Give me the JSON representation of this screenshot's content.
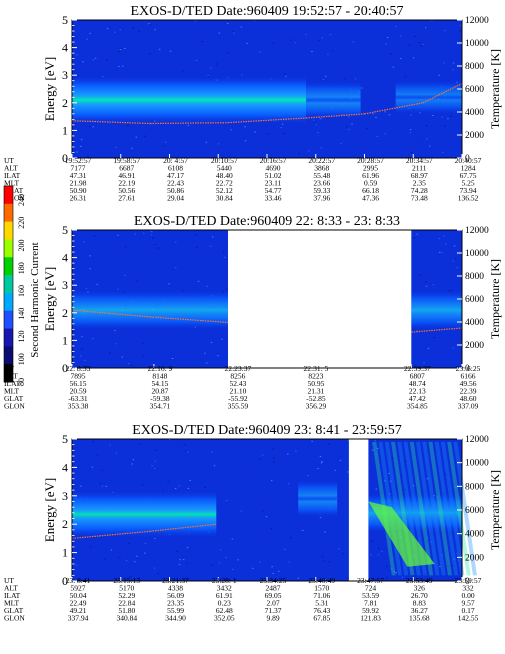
{
  "colors": {
    "background": "#0b2fd8",
    "band_core": "#00e8b0",
    "band_halo": "#18a0ff",
    "band_edge": "#0a5cff",
    "temp_trace": "#ff7030",
    "axis": "#000000"
  },
  "colorbar": {
    "label": "Second Harmonic Current",
    "ticks": [
      "240",
      "220",
      "200",
      "180",
      "160",
      "140",
      "120",
      "100",
      "80"
    ],
    "colors": [
      "#ff0000",
      "#ff6a00",
      "#ffd800",
      "#9cff00",
      "#00d000",
      "#00c8a0",
      "#00a8ff",
      "#1e50ff",
      "#1818b0",
      "#0c0c70",
      "#000000"
    ]
  },
  "chart_data": [
    {
      "type": "heatmap",
      "title": "EXOS-D/TED   Date:960409  19:52:57 - 20:40:57",
      "ylabel": "Energy [eV]",
      "y2label": "Temperature [K]",
      "ylim": [
        0,
        5
      ],
      "y2lim": [
        0,
        12000
      ],
      "yticks": [
        "0",
        "1",
        "2",
        "3",
        "4",
        "5"
      ],
      "y2ticks": [
        "0",
        "2000",
        "4000",
        "6000",
        "8000",
        "10000",
        "12000"
      ],
      "data_gaps": [],
      "band_segments": [
        {
          "x_start": 0.0,
          "x_end": 0.6,
          "center_ev": 2.1,
          "intensity": 1.0
        },
        {
          "x_start": 0.6,
          "x_end": 0.74,
          "center_ev": 2.1,
          "intensity": 0.45
        },
        {
          "x_start": 0.83,
          "x_end": 1.0,
          "center_ev": 2.2,
          "intensity": 0.25
        }
      ],
      "temp_trace_ev": [
        [
          0.0,
          1.35
        ],
        [
          0.2,
          1.25
        ],
        [
          0.4,
          1.28
        ],
        [
          0.6,
          1.45
        ],
        [
          0.75,
          1.6
        ],
        [
          0.9,
          2.0
        ],
        [
          1.0,
          2.7
        ]
      ],
      "table": {
        "labels": [
          "UT",
          "ALT",
          "ILAT",
          "MLT",
          "GLAT",
          "GLON"
        ],
        "columns": [
          [
            "19:52:57",
            "7177",
            "47.31",
            "21.98",
            "50.90",
            "26.31"
          ],
          [
            "19:58:57",
            "6687",
            "46.91",
            "22.19",
            "50.56",
            "27.61"
          ],
          [
            "20: 4:57",
            "6108",
            "47.17",
            "22.43",
            "50.86",
            "29.04"
          ],
          [
            "20:10:57",
            "5440",
            "48.40",
            "22.72",
            "52.12",
            "30.84"
          ],
          [
            "20:16:57",
            "4690",
            "51.02",
            "23.11",
            "54.77",
            "33.46"
          ],
          [
            "20:22:57",
            "3868",
            "55.48",
            "23.66",
            "59.33",
            "37.96"
          ],
          [
            "20:28:57",
            "2995",
            "61.96",
            "0.59",
            "66.18",
            "47.36"
          ],
          [
            "20:34:57",
            "2111",
            "68.97",
            "2.35",
            "74.28",
            "73.48"
          ],
          [
            "20:40:57",
            "1284",
            "67.75",
            "5.25",
            "73.94",
            "136.52"
          ]
        ]
      }
    },
    {
      "type": "heatmap",
      "title": "EXOS-D/TED   Date:960409  22: 8:33 - 23: 8:33",
      "ylabel": "Energy [eV]",
      "y2label": "Temperature [K]",
      "ylim": [
        0,
        5
      ],
      "y2lim": [
        0,
        12000
      ],
      "yticks": [
        "0",
        "1",
        "2",
        "3",
        "4",
        "5"
      ],
      "y2ticks": [
        "0",
        "2000",
        "4000",
        "6000",
        "8000",
        "10000",
        "12000"
      ],
      "data_gaps": [
        [
          0.4,
          0.87
        ]
      ],
      "band_segments": [
        {
          "x_start": 0.0,
          "x_end": 0.4,
          "center_ev": 2.1,
          "intensity": 0.55
        },
        {
          "x_start": 0.87,
          "x_end": 1.0,
          "center_ev": 2.1,
          "intensity": 0.55
        }
      ],
      "temp_trace_ev": [
        [
          0.0,
          2.1
        ],
        [
          0.2,
          1.85
        ],
        [
          0.4,
          1.65
        ],
        [
          0.87,
          1.3
        ],
        [
          1.0,
          1.45
        ]
      ],
      "table": {
        "labels": [
          "UT",
          "ALT",
          "ILAT",
          "MLT",
          "GLAT",
          "GLON"
        ],
        "columns": [
          [
            "22: 8:33",
            "7895",
            "56.15",
            "20.59",
            "-63.31",
            "353.38"
          ],
          [
            "22:16: 9",
            "8148",
            "54.15",
            "20.87",
            "-59.38",
            "354.71"
          ],
          [
            "22:23:37",
            "8256",
            "52.43",
            "21.10",
            "-55.92",
            "355.59"
          ],
          [
            "22:31: 5",
            "8223",
            "50.95",
            "21.31",
            "-52.85",
            "356.29"
          ],
          [
            "22:59:37",
            "6807",
            "48.74",
            "22.13",
            "47.42",
            "354.85"
          ],
          [
            "23: 6:25",
            "6166",
            "49.56",
            "22.39",
            "48.60",
            "337.09"
          ]
        ]
      }
    },
    {
      "type": "heatmap",
      "title": "EXOS-D/TED   Date:960409  23: 8:41 - 23:59:57",
      "ylabel": "Energy [eV]",
      "y2label": "Temperature [K]",
      "ylim": [
        0,
        5
      ],
      "y2lim": [
        0,
        12000
      ],
      "yticks": [
        "0",
        "1",
        "2",
        "3",
        "4",
        "5"
      ],
      "y2ticks": [
        "0",
        "2000",
        "4000",
        "6000",
        "8000",
        "10000",
        "12000"
      ],
      "data_gaps": [
        [
          0.71,
          0.76
        ]
      ],
      "band_segments": [
        {
          "x_start": 0.0,
          "x_end": 0.37,
          "center_ev": 2.35,
          "intensity": 0.9
        },
        {
          "x_start": 0.58,
          "x_end": 0.68,
          "center_ev": 2.9,
          "intensity": 0.4
        },
        {
          "x_start": 0.76,
          "x_end": 1.0,
          "center_ev": 2.4,
          "intensity": 0.5
        }
      ],
      "temp_trace_ev": [
        [
          0.0,
          1.5
        ],
        [
          0.2,
          1.75
        ],
        [
          0.37,
          2.0
        ]
      ],
      "table": {
        "labels": [
          "UT",
          "ALT",
          "ILAT",
          "MLT",
          "GLAT",
          "GLON"
        ],
        "columns": [
          [
            "23: 8:41",
            "5927",
            "50.04",
            "22.49",
            "49.21",
            "337.94"
          ],
          [
            "23:15:13",
            "5170",
            "52.29",
            "22.84",
            "51.80",
            "340.84"
          ],
          [
            "23:21:37",
            "4338",
            "56.09",
            "23.35",
            "55.99",
            "344.90"
          ],
          [
            "23:28: 1",
            "3432",
            "61.91",
            "0.23",
            "62.48",
            "352.05"
          ],
          [
            "23:34:25",
            "2487",
            "69.05",
            "2.07",
            "71.37",
            "9.89"
          ],
          [
            "23:40:49",
            "1570",
            "71.06",
            "5.31",
            "76.43",
            "67.85"
          ],
          [
            "23:47:57",
            "724",
            "53.59",
            "7.81",
            "59.92",
            "121.83"
          ],
          [
            "23:53:49",
            "326",
            "26.70",
            "8.83",
            "36.27",
            "135.68"
          ],
          [
            "23:59:57",
            "332",
            "0.00",
            "9.57",
            "0.17",
            "142.55"
          ]
        ]
      }
    }
  ]
}
